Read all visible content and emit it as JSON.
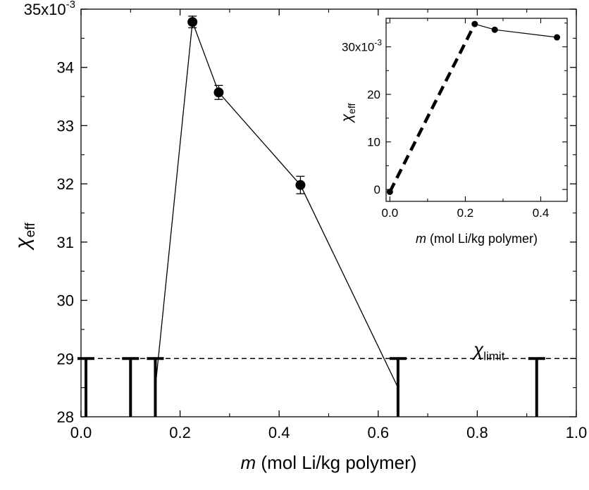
{
  "chart_data": [
    {
      "type": "line",
      "grid": false,
      "xlabel": {
        "symbol": "m",
        "text": " (mol Li/kg polymer)"
      },
      "ylabel": {
        "base": "χ",
        "sub": "eff"
      },
      "xlim": [
        0.0,
        1.0
      ],
      "ylim": [
        0.028,
        0.035
      ],
      "xticks": [
        "0.0",
        "0.2",
        "0.4",
        "0.6",
        "0.8",
        "1.0"
      ],
      "xtick_values": [
        0.0,
        0.2,
        0.4,
        0.6,
        0.8,
        1.0
      ],
      "yticks": [
        "28",
        "29",
        "30",
        "31",
        "32",
        "33",
        "34",
        "35x10"
      ],
      "ytick_values": [
        0.028,
        0.029,
        0.03,
        0.031,
        0.032,
        0.033,
        0.034,
        0.035
      ],
      "ytick_exponent": "-3",
      "series": [
        {
          "x": [
            0.225,
            0.278,
            0.443
          ],
          "y": [
            0.03478,
            0.03357,
            0.03198
          ],
          "yerr": [
            0.0001,
            0.00012,
            0.00015
          ],
          "marker": "filled-circle"
        }
      ],
      "connector_line": {
        "x": [
          0.15,
          0.225,
          0.278,
          0.443,
          0.64
        ],
        "y": [
          0.0285,
          0.03478,
          0.03357,
          0.03198,
          0.0285
        ]
      },
      "reference_line": {
        "y": 0.029,
        "style": "dashed",
        "label_base": "χ",
        "label_sub": "limit"
      },
      "limit_bars": {
        "x": [
          0.01,
          0.1,
          0.15,
          0.64,
          0.92
        ],
        "y_top": 0.029,
        "y_bottom": 0.028
      }
    },
    {
      "type": "line",
      "inset": true,
      "grid": false,
      "xlabel": {
        "symbol": "m",
        "text": "  (mol Li/kg polymer)"
      },
      "ylabel": {
        "base": "χ",
        "sub": "eff"
      },
      "xlim": [
        -0.01,
        0.47
      ],
      "ylim": [
        -0.0025,
        0.036
      ],
      "xticks": [
        "0.0",
        "0.2",
        "0.4"
      ],
      "xtick_values": [
        0.0,
        0.2,
        0.4
      ],
      "yticks": [
        "0",
        "10",
        "20",
        "30x10"
      ],
      "ytick_values": [
        0.0,
        0.01,
        0.02,
        0.03
      ],
      "ytick_exponent": "-3",
      "series": [
        {
          "x": [
            0.0,
            0.225,
            0.278,
            0.443
          ],
          "y": [
            -0.0005,
            0.0348,
            0.0336,
            0.032
          ],
          "marker": "filled-circle"
        }
      ],
      "dashed_segment": {
        "x": [
          0.0,
          0.225
        ],
        "y": [
          -0.0005,
          0.0348
        ]
      }
    }
  ]
}
